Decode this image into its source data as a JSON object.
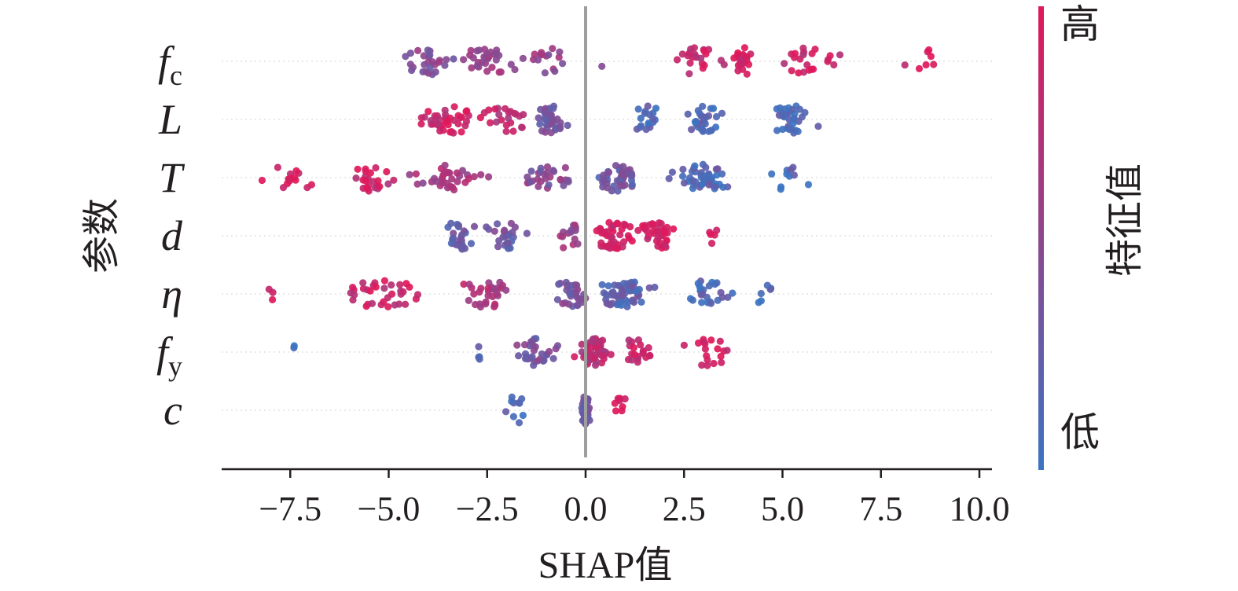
{
  "chart_data": {
    "type": "scatter",
    "subtype": "shap-beeswarm",
    "xlabel": "SHAP值",
    "ylabel": "参数",
    "xlim": [
      -9.2,
      10.3
    ],
    "xticks": [
      -7.5,
      -5.0,
      -2.5,
      0.0,
      2.5,
      5.0,
      7.5,
      10.0
    ],
    "xtick_labels": [
      "−7.5",
      "−5.0",
      "−2.5",
      "0.0",
      "2.5",
      "5.0",
      "7.5",
      "10.0"
    ],
    "zero_line": 0.0,
    "features": [
      {
        "label": "f",
        "sub": "c"
      },
      {
        "label": "L",
        "sub": ""
      },
      {
        "label": "T",
        "sub": ""
      },
      {
        "label": "d",
        "sub": ""
      },
      {
        "label": "η",
        "sub": ""
      },
      {
        "label": "f",
        "sub": "y"
      },
      {
        "label": "c",
        "sub": ""
      }
    ],
    "colorbar": {
      "label": "特征值",
      "high_label": "高",
      "low_label": "低",
      "high_color": "#e0185a",
      "low_color": "#3b74c2"
    },
    "clusters": [
      [
        [
          -4.0,
          1.0,
          0.45,
          26
        ],
        [
          -2.5,
          1.2,
          0.55,
          30
        ],
        [
          -1.0,
          0.9,
          0.5,
          16
        ],
        [
          0.4,
          0.05,
          0.5,
          1
        ],
        [
          2.8,
          1.0,
          0.85,
          22
        ],
        [
          4.0,
          0.5,
          0.9,
          20
        ],
        [
          5.6,
          1.1,
          0.85,
          22
        ],
        [
          8.6,
          0.8,
          0.95,
          7
        ]
      ],
      [
        [
          -3.5,
          1.4,
          0.88,
          40
        ],
        [
          -2.0,
          1.0,
          0.75,
          22
        ],
        [
          -0.9,
          0.7,
          0.3,
          34
        ],
        [
          1.6,
          0.6,
          0.15,
          18
        ],
        [
          3.0,
          0.8,
          0.15,
          30
        ],
        [
          5.2,
          1.1,
          0.12,
          32
        ]
      ],
      [
        [
          -7.5,
          1.0,
          0.95,
          15
        ],
        [
          -5.5,
          0.9,
          0.85,
          24
        ],
        [
          -3.5,
          1.4,
          0.65,
          34
        ],
        [
          -1.0,
          1.0,
          0.45,
          28
        ],
        [
          0.8,
          0.9,
          0.3,
          40
        ],
        [
          3.0,
          1.2,
          0.15,
          44
        ],
        [
          5.3,
          1.0,
          0.1,
          10
        ]
      ],
      [
        [
          -3.2,
          0.8,
          0.25,
          26
        ],
        [
          -2.0,
          0.9,
          0.3,
          24
        ],
        [
          -0.4,
          0.55,
          0.55,
          14
        ],
        [
          0.7,
          0.9,
          0.92,
          44
        ],
        [
          1.8,
          0.75,
          0.95,
          36
        ],
        [
          3.2,
          0.2,
          0.95,
          5
        ]
      ],
      [
        [
          -8.0,
          0.3,
          0.95,
          3
        ],
        [
          -5.2,
          1.5,
          0.85,
          34
        ],
        [
          -2.5,
          1.2,
          0.7,
          30
        ],
        [
          -0.3,
          0.8,
          0.4,
          30
        ],
        [
          1.0,
          1.2,
          0.2,
          56
        ],
        [
          3.0,
          1.2,
          0.15,
          24
        ],
        [
          4.6,
          0.6,
          0.1,
          6
        ]
      ],
      [
        [
          -7.4,
          0.1,
          0.1,
          2
        ],
        [
          -2.7,
          0.05,
          0.1,
          4
        ],
        [
          -1.2,
          0.9,
          0.35,
          30
        ],
        [
          0.2,
          0.7,
          0.75,
          48
        ],
        [
          1.3,
          0.6,
          0.85,
          20
        ],
        [
          3.1,
          0.8,
          0.95,
          18
        ]
      ],
      [
        [
          -1.8,
          0.7,
          0.1,
          10
        ],
        [
          0.0,
          0.18,
          0.3,
          44
        ],
        [
          0.9,
          0.3,
          0.95,
          8
        ]
      ]
    ]
  }
}
